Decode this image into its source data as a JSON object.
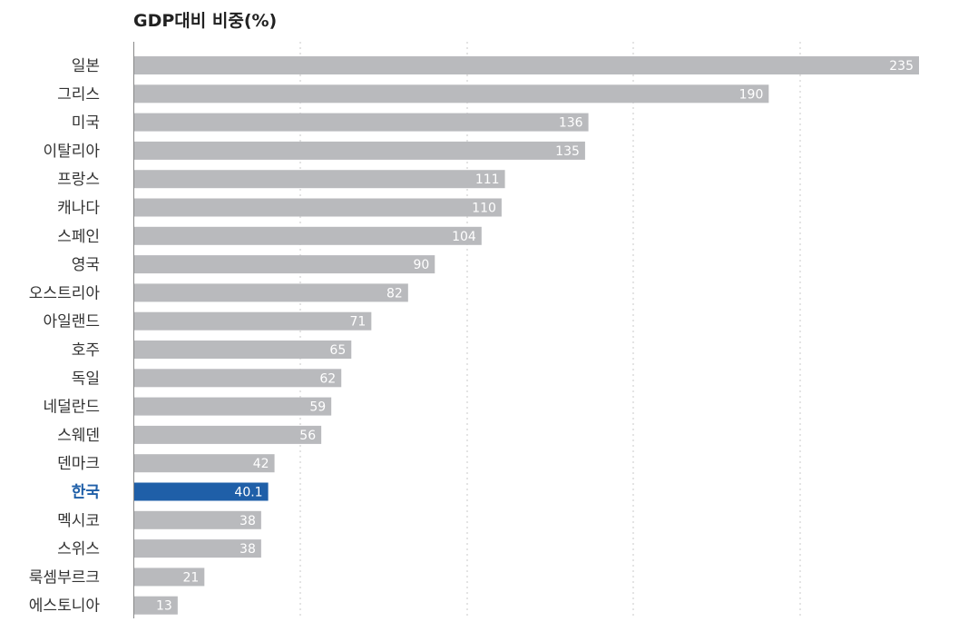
{
  "colors": {
    "bar": "#b9babd",
    "highlight": "#1f5fa8",
    "label": "#333333",
    "value_label": "#ffffff",
    "grid": "#c8c8c8",
    "axis": "#888888"
  },
  "chart_data": {
    "type": "bar",
    "orientation": "horizontal",
    "title": "GDP대비 비중(%)",
    "xlabel": "",
    "ylabel": "",
    "xlim": [
      0,
      235
    ],
    "grid": true,
    "legend": "none",
    "highlight_category": "한국",
    "categories": [
      "일본",
      "그리스",
      "미국",
      "이탈리아",
      "프랑스",
      "캐나다",
      "스페인",
      "영국",
      "오스트리아",
      "아일랜드",
      "호주",
      "독일",
      "네덜란드",
      "스웨덴",
      "덴마크",
      "한국",
      "멕시코",
      "스위스",
      "룩셈부르크",
      "에스토니아"
    ],
    "values": [
      235,
      190,
      136,
      135,
      111,
      110,
      104,
      90,
      82,
      71,
      65,
      62,
      59,
      56,
      42,
      40.1,
      38,
      38,
      21,
      13
    ],
    "value_labels": [
      "235",
      "190",
      "136",
      "135",
      "111",
      "110",
      "104",
      "90",
      "82",
      "71",
      "65",
      "62",
      "59",
      "56",
      "42",
      "40.1",
      "38",
      "38",
      "21",
      "13"
    ]
  }
}
